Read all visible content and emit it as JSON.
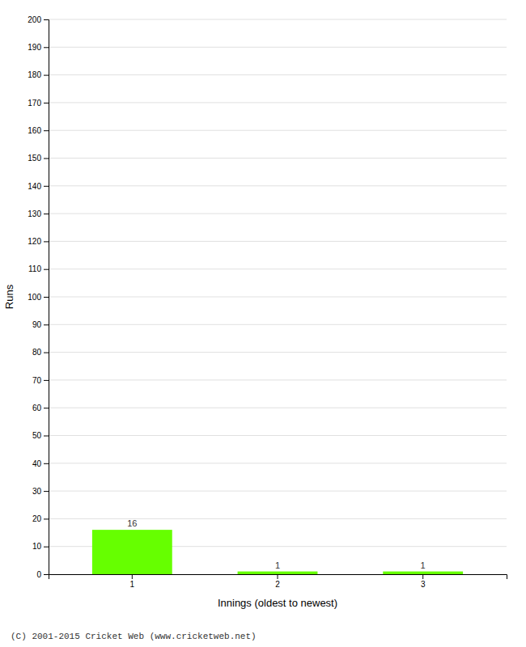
{
  "chart_data": {
    "type": "bar",
    "categories": [
      "1",
      "2",
      "3"
    ],
    "values": [
      16,
      1,
      1
    ],
    "color": "#66ff00",
    "x_label": "Innings (oldest to newest)",
    "y_label": "Runs",
    "ylim": [
      0,
      200
    ],
    "yticks": [
      0,
      10,
      20,
      30,
      40,
      50,
      60,
      70,
      80,
      90,
      100,
      110,
      120,
      130,
      140,
      150,
      160,
      170,
      180,
      190,
      200
    ],
    "grid": true,
    "data_labels": true,
    "footer": "(C) 2001-2015 Cricket Web (www.cricketweb.net)"
  }
}
